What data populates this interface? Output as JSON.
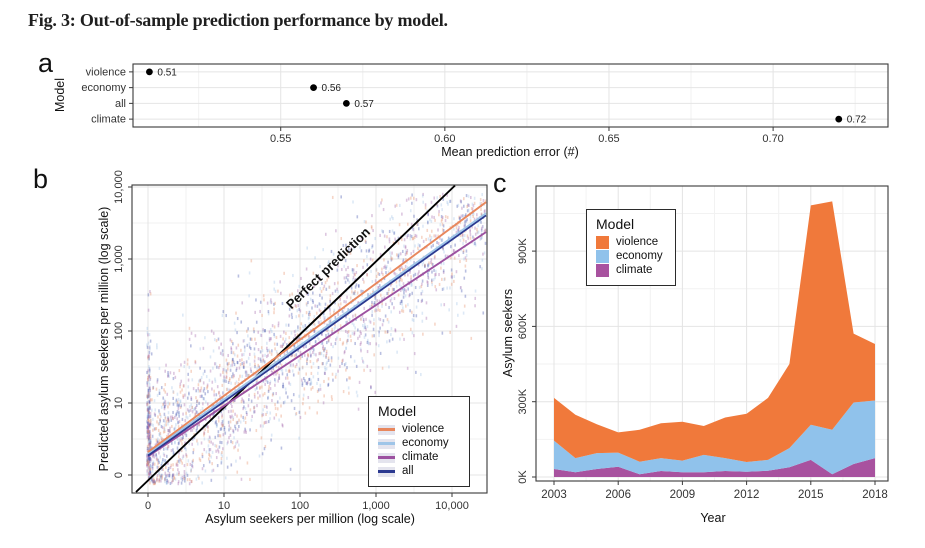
{
  "figure": {
    "title": "Fig. 3: Out-of-sample prediction performance by model."
  },
  "panels": {
    "a_label": "a",
    "b_label": "b",
    "c_label": "c"
  },
  "colors": {
    "violence_area": "#F0793B",
    "economy_area": "#90C2EB",
    "climate_area": "#A8529F",
    "violence_line": "#E8875D",
    "economy_line": "#9FC5E8",
    "climate_line": "#9C51A0",
    "all_line": "#2B3990",
    "scatter_violence": "#E8926E",
    "scatter_economy": "#A5C4E8",
    "scatter_climate": "#A66BAD",
    "scatter_all": "#4A5AB0",
    "perfect_line": "#000000",
    "point_black": "#000000",
    "grid_major": "#E4E4E4",
    "grid_minor": "#F2F2F2",
    "border": "#3a3a3a",
    "tick_text": "#333333"
  },
  "chart_data": [
    {
      "id": "a",
      "type": "scatter",
      "subtype": "dot-plot",
      "ylabel": "Model",
      "xlabel": "Mean prediction error (#)",
      "categories": [
        "violence",
        "economy",
        "all",
        "climate"
      ],
      "values": [
        0.51,
        0.56,
        0.57,
        0.72
      ],
      "value_labels": [
        "0.51",
        "0.56",
        "0.57",
        "0.72"
      ],
      "xticks": [
        0.55,
        0.6,
        0.65,
        0.7
      ],
      "xtick_labels": [
        "0.55",
        "0.60",
        "0.65",
        "0.70"
      ],
      "xlim": [
        0.505,
        0.735
      ],
      "grid": true
    },
    {
      "id": "b",
      "type": "scatter",
      "xlabel": "Asylum seekers per million (log scale)",
      "ylabel": "Predicted asylum seekers per million (log scale)",
      "xtick_labels": [
        "0",
        "10",
        "100",
        "1,000",
        "10,000"
      ],
      "ytick_labels": [
        "0",
        "10",
        "100",
        "1,000",
        "10,000"
      ],
      "annotation": "Perfect prediction",
      "legend": {
        "title": "Model",
        "entries": [
          {
            "label": "violence",
            "color_key": "violence_line"
          },
          {
            "label": "economy",
            "color_key": "economy_line"
          },
          {
            "label": "climate",
            "color_key": "climate_line"
          },
          {
            "label": "all",
            "color_key": "all_line"
          }
        ]
      },
      "perfect_line": {
        "slope": 1,
        "intercept": 0
      },
      "fit_lines": [
        {
          "name": "climate",
          "intercept": 0.26,
          "slope": 0.7,
          "color_key": "climate_line"
        },
        {
          "name": "all",
          "intercept": 0.27,
          "slope": 0.75,
          "color_key": "all_line"
        },
        {
          "name": "economy",
          "intercept": 0.3,
          "slope": 0.75,
          "color_key": "economy_line"
        },
        {
          "name": "violence",
          "intercept": 0.32,
          "slope": 0.78,
          "color_key": "violence_line"
        }
      ],
      "scatter": {
        "n": 2600,
        "seed": 7,
        "noise_sd": 0.5,
        "stripe_frac": 0.09,
        "slope": 0.76,
        "intercept": 0.28,
        "color_keys": [
          "scatter_violence",
          "scatter_economy",
          "scatter_climate",
          "scatter_all"
        ]
      },
      "grid": true
    },
    {
      "id": "c",
      "type": "area",
      "xlabel": "Year",
      "ylabel": "Asylum seekers",
      "units": "thousands",
      "x": [
        2003,
        2004,
        2005,
        2006,
        2007,
        2008,
        2009,
        2010,
        2011,
        2012,
        2013,
        2014,
        2015,
        2016,
        2017,
        2018
      ],
      "series": [
        {
          "name": "climate",
          "color_key": "climate_area",
          "values": [
            32,
            19,
            32,
            41,
            11,
            24,
            19,
            19,
            24,
            21,
            25,
            39,
            68,
            11,
            52,
            75
          ]
        },
        {
          "name": "economy",
          "color_key": "economy_area",
          "values": [
            113,
            56,
            63,
            56,
            50,
            51,
            46,
            69,
            51,
            39,
            43,
            76,
            140,
            177,
            245,
            230
          ]
        },
        {
          "name": "violence",
          "color_key": "violence_area",
          "values": [
            170,
            173,
            115,
            81,
            127,
            139,
            155,
            115,
            162,
            192,
            247,
            335,
            874,
            910,
            274,
            225
          ]
        }
      ],
      "yticks": [
        0,
        300,
        600,
        900
      ],
      "ytick_labels": [
        "0K",
        "300K",
        "600K",
        "900K"
      ],
      "xticks": [
        2003,
        2006,
        2009,
        2012,
        2015,
        2018
      ],
      "xtick_labels": [
        "2003",
        "2006",
        "2009",
        "2012",
        "2015",
        "2018"
      ],
      "ylim": [
        0,
        1160
      ],
      "legend": {
        "title": "Model",
        "entries": [
          {
            "label": "violence",
            "color_key": "violence_area"
          },
          {
            "label": "economy",
            "color_key": "economy_area"
          },
          {
            "label": "climate",
            "color_key": "climate_area"
          }
        ]
      },
      "grid": true
    }
  ]
}
